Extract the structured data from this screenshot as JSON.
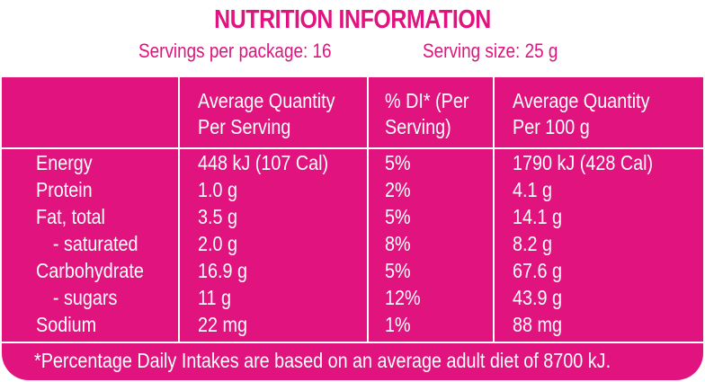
{
  "title": "NUTRITION INFORMATION",
  "servings_per_package": "Servings per package: 16",
  "serving_size": "Serving size: 25 g",
  "headers": {
    "per_serving": [
      "Average Quantity",
      "Per Serving"
    ],
    "di": [
      "% DI* (Per",
      "Serving)"
    ],
    "per_100g": [
      "Average Quantity",
      "Per 100 g"
    ]
  },
  "rows": [
    {
      "name": "Energy",
      "per_serving": "448 kJ (107 Cal)",
      "di": "5%",
      "per_100g": "1790 kJ (428 Cal)"
    },
    {
      "name": "Protein",
      "per_serving": "1.0 g",
      "di": "2%",
      "per_100g": "4.1 g"
    },
    {
      "name": "Fat, total",
      "per_serving": "3.5 g",
      "di": "5%",
      "per_100g": "14.1 g"
    },
    {
      "name": "- saturated",
      "per_serving": "2.0 g",
      "di": "8%",
      "per_100g": "8.2 g"
    },
    {
      "name": "Carbohydrate",
      "per_serving": "16.9 g",
      "di": "5%",
      "per_100g": "67.6 g"
    },
    {
      "name": "- sugars",
      "per_serving": "11 g",
      "di": "12%",
      "per_100g": "43.9 g"
    },
    {
      "name": "Sodium",
      "per_serving": "22 mg",
      "di": "1%",
      "per_100g": "88 mg"
    }
  ],
  "footnote": "*Percentage Daily Intakes are based on an average adult diet of 8700 kJ.",
  "colors": {
    "brand_pink": "#e0137f",
    "text_on_pink": "#ffffff"
  }
}
